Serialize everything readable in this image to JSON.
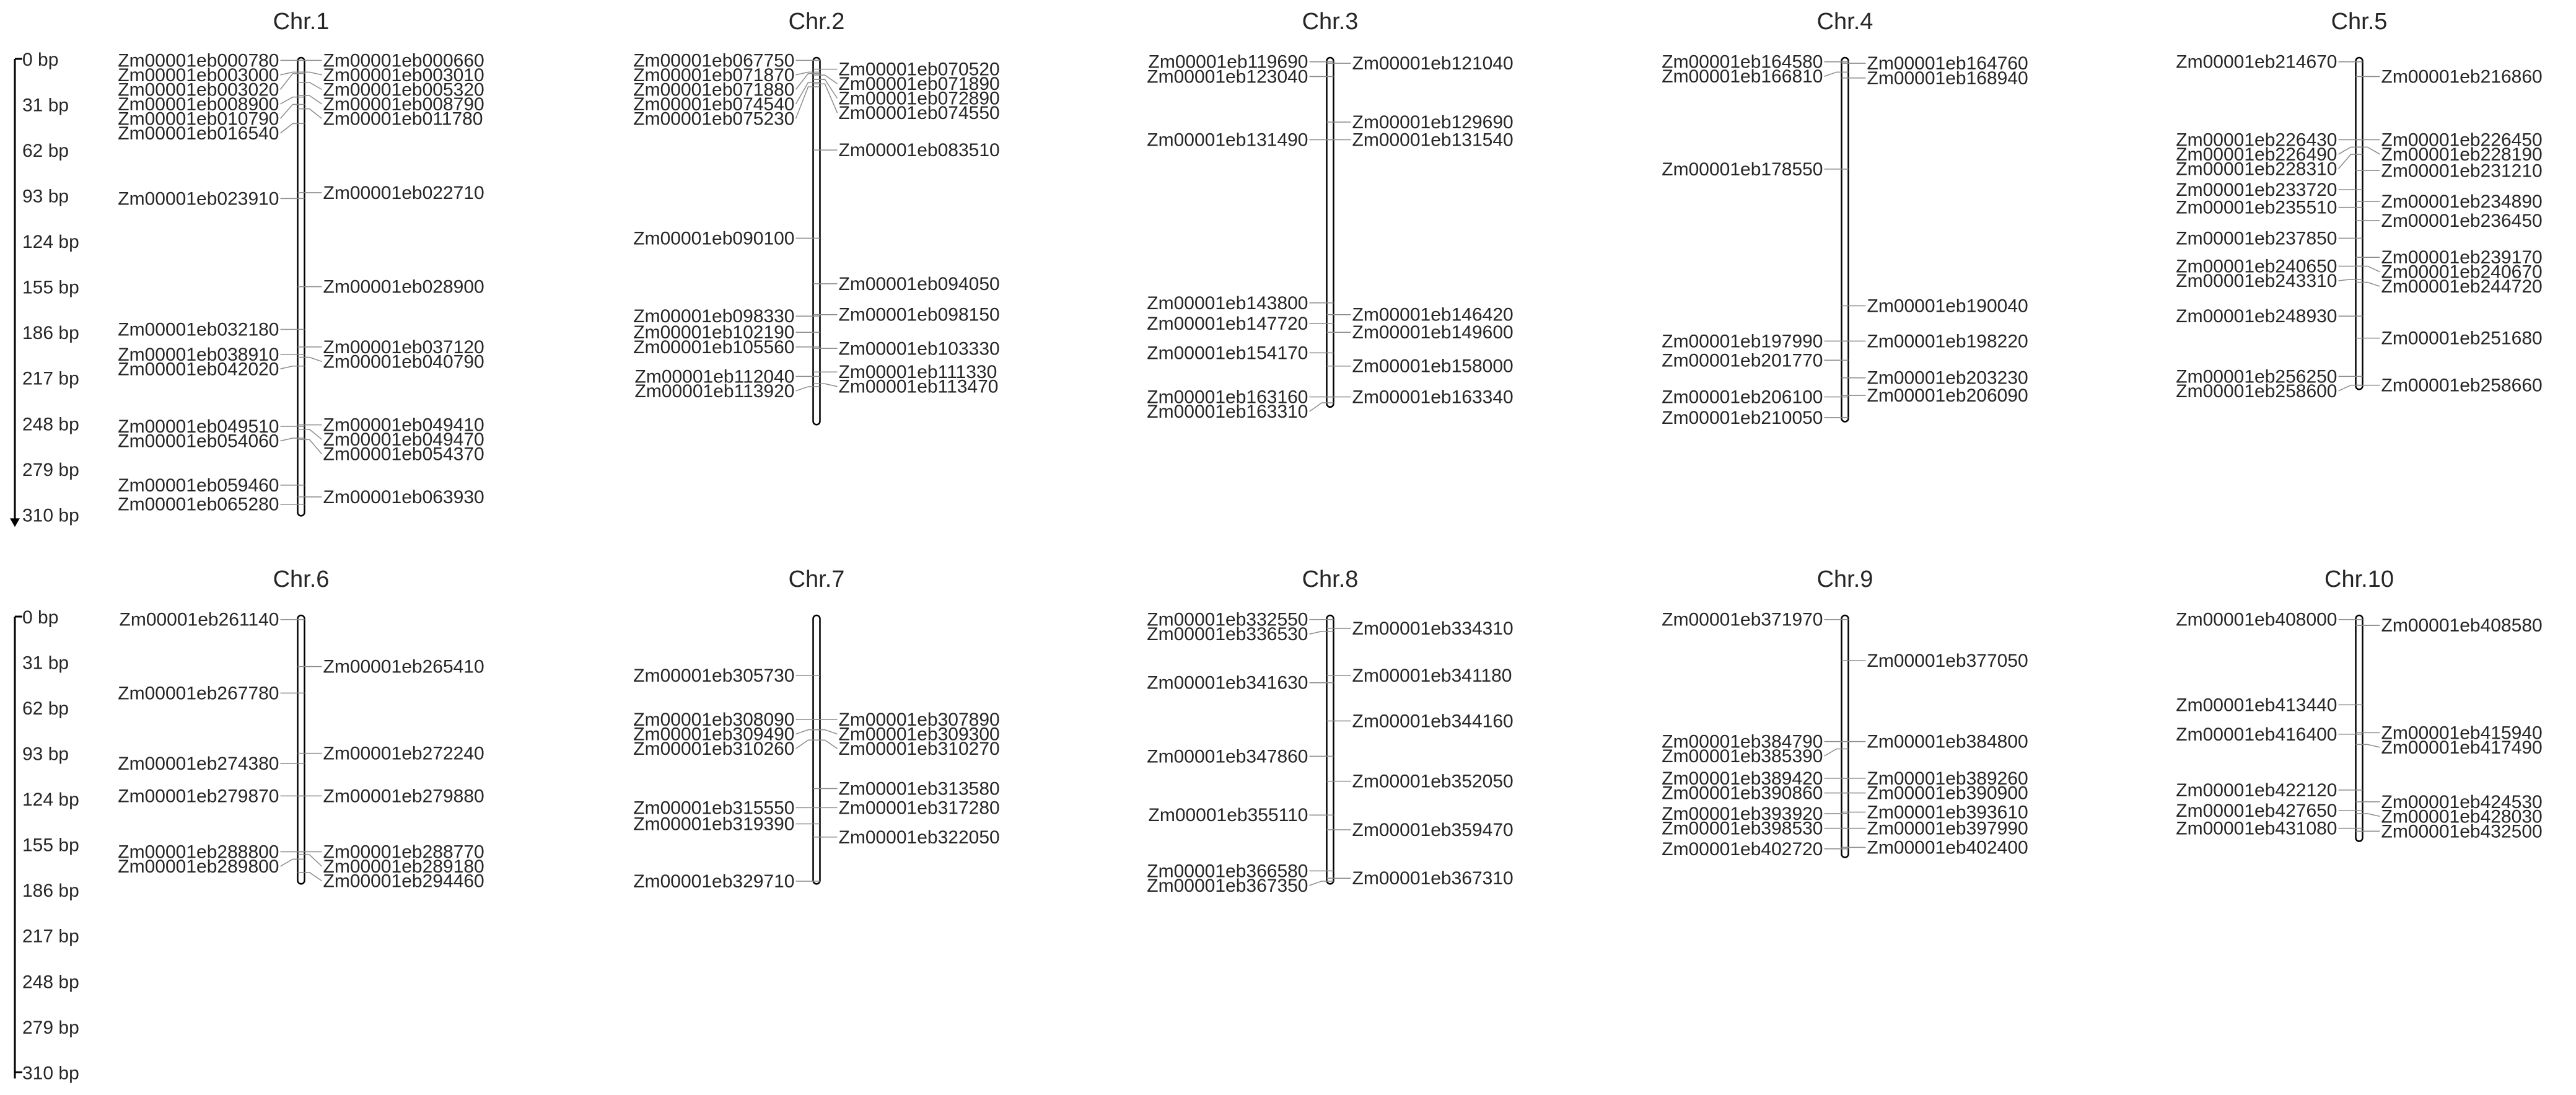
{
  "colors": {
    "chromosome_fill": "#ffffff",
    "chromosome_stroke": "#000000",
    "leader_line": "#8c8c8c",
    "text": "#262626"
  },
  "chart_data": {
    "type": "chromosome-map",
    "y_unit": "bp",
    "scale_ticks": [
      "0 bp",
      "31 bp",
      "62 bp",
      "93 bp",
      "124 bp",
      "155 bp",
      "186 bp",
      "217 bp",
      "248 bp",
      "279 bp",
      "310 bp"
    ],
    "rows": [
      {
        "chromosomes": [
          {
            "name": "Chr.1",
            "length": 310,
            "left": [
              {
                "id": "Zm00001eb000780",
                "pos": 1
              },
              {
                "id": "Zm00001eb003000",
                "pos": 9
              },
              {
                "id": "Zm00001eb003020",
                "pos": 10
              },
              {
                "id": "Zm00001eb008900",
                "pos": 26
              },
              {
                "id": "Zm00001eb010790",
                "pos": 31
              },
              {
                "id": "Zm00001eb016540",
                "pos": 44
              },
              {
                "id": "Zm00001eb023910",
                "pos": 95
              },
              {
                "id": "Zm00001eb032180",
                "pos": 184
              },
              {
                "id": "Zm00001eb038910",
                "pos": 201
              },
              {
                "id": "Zm00001eb042020",
                "pos": 209
              },
              {
                "id": "Zm00001eb049510",
                "pos": 250
              },
              {
                "id": "Zm00001eb054060",
                "pos": 258
              },
              {
                "id": "Zm00001eb059460",
                "pos": 290
              },
              {
                "id": "Zm00001eb065280",
                "pos": 303
              }
            ],
            "right": [
              {
                "id": "Zm00001eb000660",
                "pos": 1
              },
              {
                "id": "Zm00001eb003010",
                "pos": 9
              },
              {
                "id": "Zm00001eb005320",
                "pos": 16
              },
              {
                "id": "Zm00001eb008790",
                "pos": 25
              },
              {
                "id": "Zm00001eb011780",
                "pos": 34
              },
              {
                "id": "Zm00001eb022710",
                "pos": 91
              },
              {
                "id": "Zm00001eb028900",
                "pos": 155
              },
              {
                "id": "Zm00001eb037120",
                "pos": 196
              },
              {
                "id": "Zm00001eb040790",
                "pos": 203
              },
              {
                "id": "Zm00001eb049410",
                "pos": 249
              },
              {
                "id": "Zm00001eb049470",
                "pos": 252
              },
              {
                "id": "Zm00001eb054370",
                "pos": 259
              },
              {
                "id": "Zm00001eb063930",
                "pos": 298
              }
            ]
          },
          {
            "name": "Chr.2",
            "length": 248,
            "left": [
              {
                "id": "Zm00001eb067750",
                "pos": 1
              },
              {
                "id": "Zm00001eb071870",
                "pos": 9
              },
              {
                "id": "Zm00001eb071880",
                "pos": 10
              },
              {
                "id": "Zm00001eb074540",
                "pos": 16
              },
              {
                "id": "Zm00001eb075230",
                "pos": 19
              },
              {
                "id": "Zm00001eb090100",
                "pos": 122
              },
              {
                "id": "Zm00001eb098330",
                "pos": 175
              },
              {
                "id": "Zm00001eb102190",
                "pos": 186
              },
              {
                "id": "Zm00001eb105560",
                "pos": 196
              },
              {
                "id": "Zm00001eb112040",
                "pos": 216
              },
              {
                "id": "Zm00001eb113920",
                "pos": 223
              }
            ],
            "right": [
              {
                "id": "Zm00001eb070520",
                "pos": 7
              },
              {
                "id": "Zm00001eb071890",
                "pos": 11
              },
              {
                "id": "Zm00001eb072890",
                "pos": 14
              },
              {
                "id": "Zm00001eb074550",
                "pos": 17
              },
              {
                "id": "Zm00001eb083510",
                "pos": 62
              },
              {
                "id": "Zm00001eb094050",
                "pos": 153
              },
              {
                "id": "Zm00001eb098150",
                "pos": 174
              },
              {
                "id": "Zm00001eb103330",
                "pos": 197
              },
              {
                "id": "Zm00001eb111330",
                "pos": 213
              },
              {
                "id": "Zm00001eb113470",
                "pos": 221
              }
            ]
          },
          {
            "name": "Chr.3",
            "length": 236,
            "left": [
              {
                "id": "Zm00001eb119690",
                "pos": 2
              },
              {
                "id": "Zm00001eb123040",
                "pos": 12
              },
              {
                "id": "Zm00001eb131490",
                "pos": 55
              },
              {
                "id": "Zm00001eb143800",
                "pos": 166
              },
              {
                "id": "Zm00001eb147720",
                "pos": 180
              },
              {
                "id": "Zm00001eb154170",
                "pos": 200
              },
              {
                "id": "Zm00001eb163160",
                "pos": 230
              },
              {
                "id": "Zm00001eb163310",
                "pos": 234
              }
            ],
            "right": [
              {
                "id": "Zm00001eb121040",
                "pos": 3
              },
              {
                "id": "Zm00001eb129690",
                "pos": 43
              },
              {
                "id": "Zm00001eb131540",
                "pos": 55
              },
              {
                "id": "Zm00001eb146420",
                "pos": 174
              },
              {
                "id": "Zm00001eb149600",
                "pos": 186
              },
              {
                "id": "Zm00001eb158000",
                "pos": 209
              },
              {
                "id": "Zm00001eb163340",
                "pos": 230
              }
            ]
          },
          {
            "name": "Chr.4",
            "length": 246,
            "left": [
              {
                "id": "Zm00001eb164580",
                "pos": 2
              },
              {
                "id": "Zm00001eb166810",
                "pos": 9
              },
              {
                "id": "Zm00001eb178550",
                "pos": 75
              },
              {
                "id": "Zm00001eb197990",
                "pos": 192
              },
              {
                "id": "Zm00001eb201770",
                "pos": 205
              },
              {
                "id": "Zm00001eb206100",
                "pos": 230
              },
              {
                "id": "Zm00001eb210050",
                "pos": 244
              }
            ],
            "right": [
              {
                "id": "Zm00001eb164760",
                "pos": 3
              },
              {
                "id": "Zm00001eb168940",
                "pos": 13
              },
              {
                "id": "Zm00001eb190040",
                "pos": 168
              },
              {
                "id": "Zm00001eb198220",
                "pos": 192
              },
              {
                "id": "Zm00001eb203230",
                "pos": 217
              },
              {
                "id": "Zm00001eb206090",
                "pos": 229
              }
            ]
          },
          {
            "name": "Chr.5",
            "length": 224,
            "left": [
              {
                "id": "Zm00001eb214670",
                "pos": 2
              },
              {
                "id": "Zm00001eb226430",
                "pos": 55
              },
              {
                "id": "Zm00001eb226490",
                "pos": 60
              },
              {
                "id": "Zm00001eb228310",
                "pos": 65
              },
              {
                "id": "Zm00001eb233720",
                "pos": 89
              },
              {
                "id": "Zm00001eb235510",
                "pos": 101
              },
              {
                "id": "Zm00001eb237850",
                "pos": 122
              },
              {
                "id": "Zm00001eb240650",
                "pos": 141
              },
              {
                "id": "Zm00001eb243310",
                "pos": 150
              },
              {
                "id": "Zm00001eb248930",
                "pos": 175
              },
              {
                "id": "Zm00001eb256250",
                "pos": 216
              },
              {
                "id": "Zm00001eb258600",
                "pos": 222
              }
            ],
            "right": [
              {
                "id": "Zm00001eb216860",
                "pos": 12
              },
              {
                "id": "Zm00001eb226450",
                "pos": 55
              },
              {
                "id": "Zm00001eb228190",
                "pos": 60
              },
              {
                "id": "Zm00001eb231210",
                "pos": 76
              },
              {
                "id": "Zm00001eb234890",
                "pos": 97
              },
              {
                "id": "Zm00001eb236450",
                "pos": 110
              },
              {
                "id": "Zm00001eb239170",
                "pos": 135
              },
              {
                "id": "Zm00001eb240670",
                "pos": 141
              },
              {
                "id": "Zm00001eb244720",
                "pos": 152
              },
              {
                "id": "Zm00001eb251680",
                "pos": 190
              },
              {
                "id": "Zm00001eb258660",
                "pos": 222
              }
            ]
          }
        ]
      },
      {
        "chromosomes": [
          {
            "name": "Chr.6",
            "length": 181,
            "left": [
              {
                "id": "Zm00001eb261140",
                "pos": 2
              },
              {
                "id": "Zm00001eb267780",
                "pos": 52
              },
              {
                "id": "Zm00001eb274380",
                "pos": 100
              },
              {
                "id": "Zm00001eb279870",
                "pos": 122
              },
              {
                "id": "Zm00001eb288800",
                "pos": 160
              },
              {
                "id": "Zm00001eb289800",
                "pos": 165
              }
            ],
            "right": [
              {
                "id": "Zm00001eb265410",
                "pos": 34
              },
              {
                "id": "Zm00001eb272240",
                "pos": 93
              },
              {
                "id": "Zm00001eb279880",
                "pos": 122
              },
              {
                "id": "Zm00001eb288770",
                "pos": 160
              },
              {
                "id": "Zm00001eb289180",
                "pos": 162
              },
              {
                "id": "Zm00001eb294460",
                "pos": 174
              }
            ]
          },
          {
            "name": "Chr.7",
            "length": 181,
            "left": [
              {
                "id": "Zm00001eb305730",
                "pos": 40
              },
              {
                "id": "Zm00001eb308090",
                "pos": 70
              },
              {
                "id": "Zm00001eb309490",
                "pos": 77
              },
              {
                "id": "Zm00001eb310260",
                "pos": 84
              },
              {
                "id": "Zm00001eb315550",
                "pos": 130
              },
              {
                "id": "Zm00001eb319390",
                "pos": 141
              },
              {
                "id": "Zm00001eb329710",
                "pos": 180
              }
            ],
            "right": [
              {
                "id": "Zm00001eb307890",
                "pos": 70
              },
              {
                "id": "Zm00001eb309300",
                "pos": 77
              },
              {
                "id": "Zm00001eb310270",
                "pos": 84
              },
              {
                "id": "Zm00001eb313580",
                "pos": 117
              },
              {
                "id": "Zm00001eb317280",
                "pos": 130
              },
              {
                "id": "Zm00001eb322050",
                "pos": 150
              }
            ]
          },
          {
            "name": "Chr.8",
            "length": 181,
            "left": [
              {
                "id": "Zm00001eb332550",
                "pos": 2
              },
              {
                "id": "Zm00001eb336530",
                "pos": 10
              },
              {
                "id": "Zm00001eb341630",
                "pos": 45
              },
              {
                "id": "Zm00001eb347860",
                "pos": 95
              },
              {
                "id": "Zm00001eb355110",
                "pos": 135
              },
              {
                "id": "Zm00001eb366580",
                "pos": 173
              },
              {
                "id": "Zm00001eb367350",
                "pos": 180
              }
            ],
            "right": [
              {
                "id": "Zm00001eb334310",
                "pos": 8
              },
              {
                "id": "Zm00001eb341180",
                "pos": 40
              },
              {
                "id": "Zm00001eb344160",
                "pos": 71
              },
              {
                "id": "Zm00001eb352050",
                "pos": 112
              },
              {
                "id": "Zm00001eb359470",
                "pos": 145
              },
              {
                "id": "Zm00001eb367310",
                "pos": 178
              }
            ]
          },
          {
            "name": "Chr.9",
            "length": 163,
            "left": [
              {
                "id": "Zm00001eb371970",
                "pos": 2
              },
              {
                "id": "Zm00001eb384790",
                "pos": 85
              },
              {
                "id": "Zm00001eb385390",
                "pos": 90
              },
              {
                "id": "Zm00001eb389420",
                "pos": 110
              },
              {
                "id": "Zm00001eb390860",
                "pos": 120
              },
              {
                "id": "Zm00001eb393920",
                "pos": 134
              },
              {
                "id": "Zm00001eb398530",
                "pos": 144
              },
              {
                "id": "Zm00001eb402720",
                "pos": 158
              }
            ],
            "right": [
              {
                "id": "Zm00001eb377050",
                "pos": 30
              },
              {
                "id": "Zm00001eb384800",
                "pos": 85
              },
              {
                "id": "Zm00001eb389260",
                "pos": 110
              },
              {
                "id": "Zm00001eb390900",
                "pos": 120
              },
              {
                "id": "Zm00001eb393610",
                "pos": 133
              },
              {
                "id": "Zm00001eb397990",
                "pos": 144
              },
              {
                "id": "Zm00001eb402400",
                "pos": 157
              }
            ]
          },
          {
            "name": "Chr.10",
            "length": 152,
            "left": [
              {
                "id": "Zm00001eb408000",
                "pos": 2
              },
              {
                "id": "Zm00001eb413440",
                "pos": 60
              },
              {
                "id": "Zm00001eb416400",
                "pos": 80
              },
              {
                "id": "Zm00001eb422120",
                "pos": 118
              },
              {
                "id": "Zm00001eb427650",
                "pos": 132
              },
              {
                "id": "Zm00001eb431080",
                "pos": 144
              }
            ],
            "right": [
              {
                "id": "Zm00001eb408580",
                "pos": 6
              },
              {
                "id": "Zm00001eb415940",
                "pos": 79
              },
              {
                "id": "Zm00001eb417490",
                "pos": 87
              },
              {
                "id": "Zm00001eb424530",
                "pos": 126
              },
              {
                "id": "Zm00001eb428030",
                "pos": 134
              },
              {
                "id": "Zm00001eb432500",
                "pos": 146
              }
            ]
          }
        ]
      }
    ]
  }
}
